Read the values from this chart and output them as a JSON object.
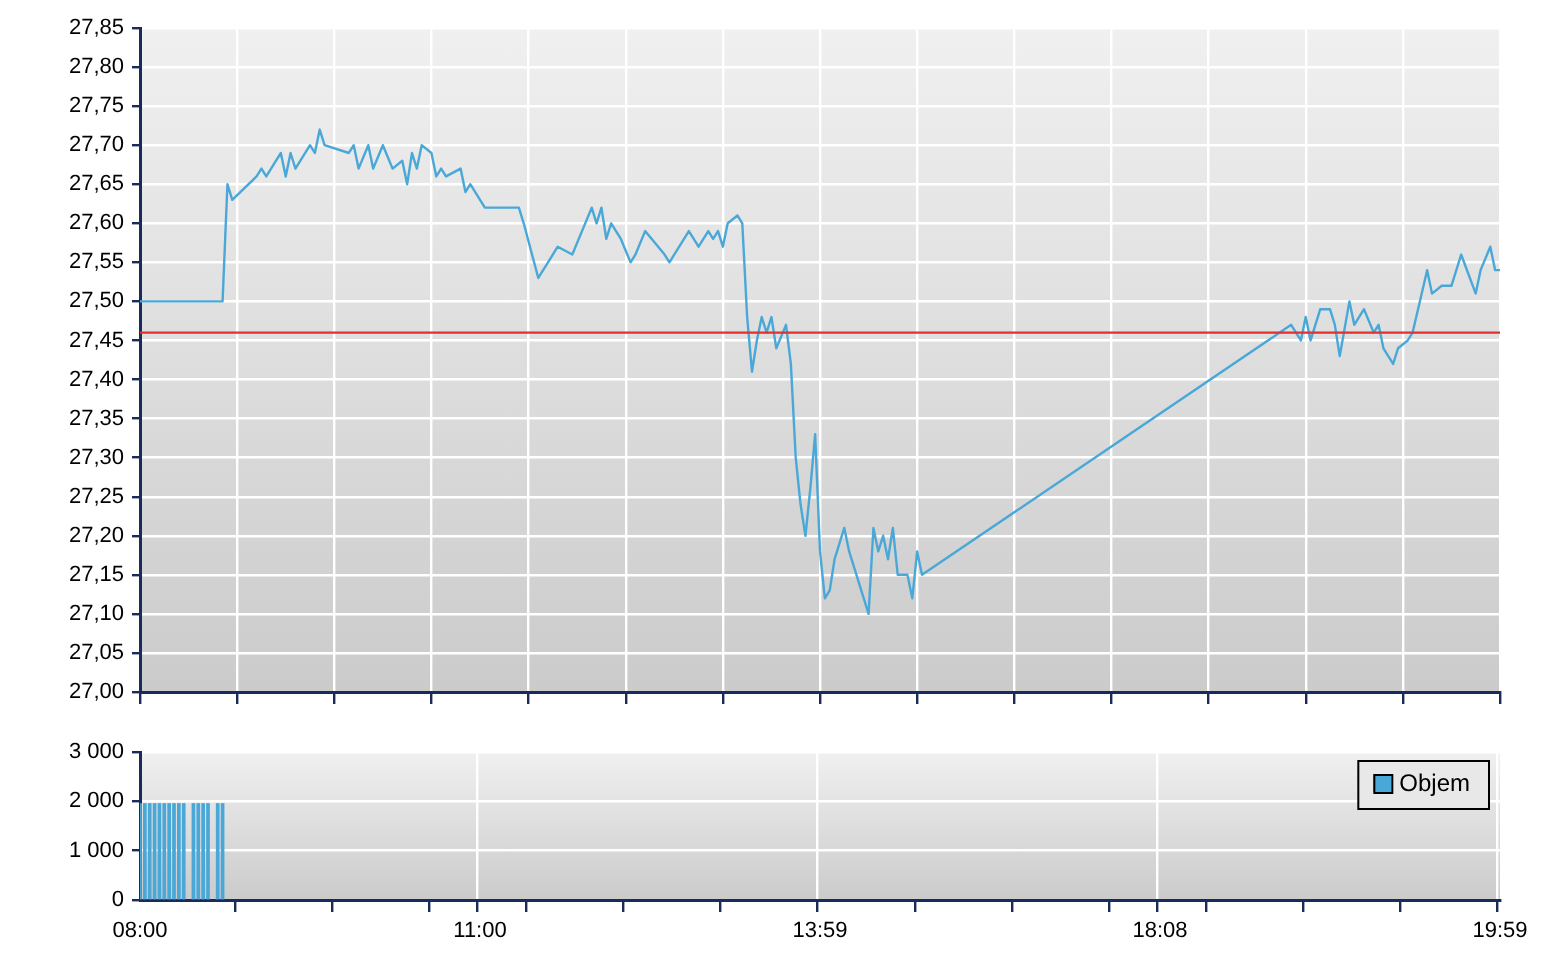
{
  "chart_data": [
    {
      "type": "line",
      "grid": true,
      "tick_labels": "y",
      "categories": [
        null,
        null,
        null,
        null,
        null,
        null,
        null,
        null,
        null,
        null,
        null,
        null,
        null,
        null,
        null,
        null,
        null,
        null,
        null,
        null,
        null,
        null,
        null,
        null,
        null,
        null,
        null,
        null,
        null,
        null,
        null,
        null,
        null,
        null,
        null,
        null,
        null,
        null,
        null,
        null,
        null,
        null,
        null,
        null,
        null,
        null,
        null,
        null,
        null,
        null,
        null,
        null,
        null,
        null,
        null,
        null,
        null,
        null,
        null,
        null,
        null,
        null,
        null,
        null,
        null,
        null,
        null,
        null,
        null,
        null,
        null,
        null,
        null,
        null,
        null,
        null,
        null,
        null,
        null,
        null,
        null,
        null,
        null,
        null,
        null,
        null,
        null,
        null,
        null,
        null,
        null,
        null,
        null,
        null,
        null,
        null,
        null,
        null,
        null,
        null,
        null,
        null,
        null,
        null,
        null,
        null,
        null,
        null,
        null,
        null,
        null,
        null,
        null,
        null,
        null,
        null,
        null,
        null,
        null,
        null,
        null,
        null,
        null,
        null,
        null,
        null,
        null,
        null,
        null,
        null,
        null,
        null,
        null,
        null,
        null,
        null,
        null,
        null,
        null,
        null,
        null,
        null,
        null,
        null,
        null,
        null,
        null,
        null,
        null,
        null,
        null,
        null,
        null,
        null,
        null,
        null,
        null,
        null,
        null,
        null,
        null,
        null,
        null,
        null,
        null,
        null,
        null,
        null,
        null,
        null,
        null,
        null,
        null,
        null,
        null,
        null,
        null,
        null,
        null,
        null,
        null,
        null,
        null,
        null,
        null,
        null,
        null,
        null,
        null,
        null,
        null,
        null,
        null,
        null,
        null,
        null,
        null,
        null,
        null,
        null,
        null,
        null,
        null,
        null,
        null,
        null,
        null,
        null,
        null,
        null,
        null,
        null,
        null,
        null,
        null,
        null,
        null,
        null,
        null,
        null,
        null,
        null,
        null,
        null,
        null,
        null,
        null,
        null,
        null,
        null,
        null,
        null,
        null,
        null,
        null,
        null,
        null,
        null,
        null,
        null,
        null,
        null,
        null,
        null,
        null,
        null,
        null,
        null,
        null,
        null,
        null,
        null,
        null,
        null,
        null,
        null,
        null,
        null,
        null,
        null,
        null,
        null,
        null,
        null,
        null,
        null,
        null,
        null,
        null,
        null,
        null,
        null,
        null,
        null,
        null,
        null,
        null,
        null,
        null,
        null,
        null
      ],
      "ylim": [
        27,
        27.85
      ],
      "yticks": [
        {
          "value": 27,
          "label": "27,00"
        },
        {
          "value": 27.05,
          "label": "27,05"
        },
        {
          "value": 27.1,
          "label": "27,10"
        },
        {
          "value": 27.15,
          "label": "27,15"
        },
        {
          "value": 27.2,
          "label": "27,20"
        },
        {
          "value": 27.25,
          "label": "27,25"
        },
        {
          "value": 27.3,
          "label": "27,30"
        },
        {
          "value": 27.35,
          "label": "27,35"
        },
        {
          "value": 27.4,
          "label": "27,40"
        },
        {
          "value": 27.45,
          "label": "27,45"
        },
        {
          "value": 27.5,
          "label": "27,50"
        },
        {
          "value": 27.55,
          "label": "27,55"
        },
        {
          "value": 27.6,
          "label": "27,60"
        },
        {
          "value": 27.65,
          "label": "27,65"
        },
        {
          "value": 27.7,
          "label": "27,70"
        },
        {
          "value": 27.75,
          "label": "27,75"
        },
        {
          "value": 27.8,
          "label": "27,80"
        },
        {
          "value": 27.85,
          "label": "27,85"
        }
      ],
      "ref_lines": [
        {
          "axis": "y",
          "value": 27.46,
          "color": "#e03030"
        }
      ],
      "series": [
        {
          "color": "#4aa8d8",
          "values": [
            27.5,
            null,
            null,
            null,
            null,
            null,
            null,
            null,
            null,
            null,
            null,
            null,
            null,
            null,
            null,
            null,
            null,
            27.5,
            27.65,
            27.63,
            null,
            null,
            null,
            null,
            27.66,
            27.67,
            27.66,
            null,
            null,
            27.69,
            27.66,
            27.69,
            27.67,
            null,
            null,
            27.7,
            27.69,
            27.72,
            27.7,
            null,
            null,
            null,
            null,
            27.69,
            27.7,
            27.67,
            null,
            27.7,
            27.67,
            null,
            27.7,
            null,
            27.67,
            null,
            27.68,
            27.65,
            27.69,
            27.67,
            27.7,
            null,
            27.69,
            27.66,
            27.67,
            27.66,
            null,
            null,
            27.67,
            27.64,
            27.65,
            null,
            null,
            27.62,
            null,
            27.62,
            27.62,
            27.62,
            null,
            null,
            27.62,
            27.6,
            null,
            null,
            27.53,
            null,
            27.55,
            null,
            27.57,
            null,
            null,
            27.56,
            null,
            27.59,
            null,
            27.62,
            27.6,
            27.62,
            27.58,
            27.6,
            null,
            27.58,
            null,
            27.55,
            27.56,
            null,
            27.59,
            null,
            null,
            null,
            27.56,
            27.55,
            null,
            null,
            null,
            27.59,
            null,
            27.57,
            null,
            27.59,
            27.58,
            27.59,
            27.57,
            27.6,
            null,
            27.61,
            27.6,
            27.48,
            27.41,
            27.45,
            27.48,
            27.46,
            27.48,
            27.44,
            null,
            27.47,
            27.42,
            27.3,
            27.24,
            27.2,
            27.26,
            27.33,
            27.18,
            27.12,
            27.13,
            27.17,
            null,
            27.21,
            27.18,
            null,
            null,
            null,
            27.1,
            27.21,
            27.18,
            27.2,
            27.17,
            27.21,
            27.15,
            null,
            27.15,
            27.12,
            27.18,
            27.15,
            null,
            null,
            null,
            null,
            null,
            null,
            null,
            null,
            null,
            null,
            null,
            null,
            null,
            null,
            null,
            null,
            null,
            null,
            null,
            null,
            null,
            null,
            null,
            null,
            null,
            null,
            null,
            null,
            null,
            null,
            null,
            null,
            null,
            null,
            null,
            null,
            null,
            null,
            null,
            null,
            null,
            null,
            null,
            null,
            null,
            null,
            null,
            null,
            null,
            null,
            null,
            null,
            null,
            null,
            null,
            null,
            null,
            null,
            null,
            null,
            null,
            null,
            null,
            null,
            null,
            null,
            null,
            null,
            null,
            null,
            null,
            null,
            null,
            null,
            null,
            27.47,
            null,
            27.45,
            27.48,
            27.45,
            null,
            27.49,
            null,
            27.49,
            27.47,
            27.43,
            null,
            27.5,
            27.47,
            null,
            27.49,
            null,
            27.46,
            27.47,
            27.44,
            null,
            27.42,
            27.44,
            null,
            27.45,
            27.46,
            null,
            null,
            27.54,
            27.51,
            null,
            27.52,
            null,
            27.52,
            null,
            27.56,
            null,
            null,
            27.51,
            27.54,
            null,
            27.57,
            27.54,
            27.54
          ]
        }
      ]
    },
    {
      "type": "bar",
      "grid": true,
      "legend": "top right",
      "categories": [
        "08:00",
        null,
        null,
        null,
        null,
        null,
        null,
        null,
        null,
        null,
        null,
        null,
        null,
        null,
        null,
        null,
        null,
        null,
        null,
        null,
        null,
        null,
        null,
        null,
        null,
        null,
        null,
        null,
        null,
        null,
        null,
        null,
        null,
        null,
        null,
        null,
        null,
        null,
        null,
        null,
        null,
        null,
        null,
        null,
        null,
        null,
        null,
        null,
        null,
        null,
        null,
        null,
        null,
        null,
        null,
        null,
        null,
        null,
        null,
        null,
        null,
        null,
        null,
        null,
        null,
        null,
        null,
        null,
        null,
        null,
        "11:00",
        null,
        null,
        null,
        null,
        null,
        null,
        null,
        null,
        null,
        null,
        null,
        null,
        null,
        null,
        null,
        null,
        null,
        null,
        null,
        null,
        null,
        null,
        null,
        null,
        null,
        null,
        null,
        null,
        null,
        null,
        null,
        null,
        null,
        null,
        null,
        null,
        null,
        null,
        null,
        null,
        null,
        null,
        null,
        null,
        null,
        null,
        null,
        null,
        null,
        null,
        null,
        null,
        null,
        null,
        null,
        null,
        null,
        null,
        null,
        null,
        null,
        null,
        null,
        null,
        null,
        null,
        null,
        null,
        null,
        "13:59",
        null,
        null,
        null,
        null,
        null,
        null,
        null,
        null,
        null,
        null,
        null,
        null,
        null,
        null,
        null,
        null,
        null,
        null,
        null,
        null,
        null,
        null,
        null,
        null,
        null,
        null,
        null,
        null,
        null,
        null,
        null,
        null,
        null,
        null,
        null,
        null,
        null,
        null,
        null,
        null,
        null,
        null,
        null,
        null,
        null,
        null,
        null,
        null,
        null,
        null,
        null,
        null,
        null,
        null,
        null,
        null,
        null,
        null,
        null,
        null,
        null,
        null,
        null,
        null,
        null,
        null,
        null,
        null,
        null,
        "18:08",
        null,
        null,
        null,
        null,
        null,
        null,
        null,
        null,
        null,
        null,
        null,
        null,
        null,
        null,
        null,
        null,
        null,
        null,
        null,
        null,
        null,
        null,
        null,
        null,
        null,
        null,
        null,
        null,
        null,
        null,
        null,
        null,
        null,
        null,
        null,
        null,
        null,
        null,
        null,
        null,
        null,
        null,
        null,
        null,
        null,
        null,
        null,
        null,
        null,
        null,
        null,
        null,
        null,
        null,
        null,
        null,
        null,
        null,
        null,
        null,
        null,
        null,
        null,
        null,
        null,
        null,
        null,
        null,
        null,
        "19:59"
      ],
      "ylim": [
        0,
        3000
      ],
      "yticks": [
        {
          "value": 0,
          "label": "0"
        },
        {
          "value": 1000,
          "label": "1 000"
        },
        {
          "value": 2000,
          "label": "2 000"
        },
        {
          "value": 3000,
          "label": "3 000"
        }
      ],
      "series": [
        {
          "name": "Objem",
          "color": "#4aa8d8",
          "values": [
            1950,
            1950,
            1950,
            1950,
            1950,
            1950,
            1950,
            1950,
            1950,
            1950,
            null,
            1950,
            1950,
            1950,
            1950,
            null,
            1950,
            1950,
            null,
            null,
            null,
            null,
            null,
            null,
            null,
            null,
            null,
            null,
            null,
            null,
            null,
            null,
            null,
            null,
            null,
            null,
            null,
            null,
            null,
            null,
            null,
            null,
            null,
            null,
            null,
            null,
            null,
            null,
            null,
            null,
            null,
            null,
            null,
            null,
            null,
            null,
            null,
            null,
            null,
            null,
            null,
            null,
            null,
            null,
            null,
            null,
            null,
            null,
            null,
            null,
            null,
            null,
            null,
            null,
            null,
            null,
            null,
            null,
            null,
            null,
            null,
            null,
            null,
            null,
            null,
            null,
            null,
            null,
            null,
            null,
            null,
            null,
            null,
            null,
            null,
            null,
            null,
            null,
            null,
            null,
            null,
            null,
            null,
            null,
            null,
            null,
            null,
            null,
            null,
            null,
            null,
            null,
            null,
            null,
            null,
            null,
            null,
            null,
            null,
            null,
            null,
            null,
            null,
            null,
            null,
            null,
            null,
            null,
            null,
            null,
            null,
            null,
            null,
            null,
            null,
            null,
            null,
            null,
            null,
            null,
            null,
            null,
            null,
            null,
            null,
            null,
            null,
            null,
            null,
            null,
            null,
            null,
            null,
            null,
            null,
            null,
            null,
            null,
            null,
            null,
            null,
            null,
            null,
            null,
            null,
            null,
            null,
            null,
            null,
            null,
            null,
            null,
            null,
            null,
            null,
            null,
            null,
            null,
            null,
            null,
            null,
            null,
            null,
            null,
            null,
            null,
            null,
            null,
            null,
            null,
            null,
            null,
            null,
            null,
            null,
            null,
            null,
            null,
            null,
            null,
            null,
            null,
            null,
            null,
            null,
            null,
            null,
            null,
            null,
            null,
            null,
            null,
            null,
            null,
            null,
            null,
            null,
            null,
            null,
            null,
            null,
            null,
            null,
            null,
            null,
            null,
            null,
            null,
            null,
            null,
            null,
            null,
            null,
            null,
            null,
            null,
            null,
            null,
            null,
            null,
            null,
            null,
            null,
            null,
            null,
            null,
            null,
            null,
            null,
            null,
            null,
            null,
            null,
            null,
            null,
            null,
            null,
            null,
            null,
            null,
            null,
            null,
            null,
            null,
            null,
            null,
            null,
            null,
            null,
            null,
            null,
            null,
            null,
            null,
            null,
            null,
            null,
            null,
            null,
            null,
            null
          ]
        }
      ]
    }
  ]
}
